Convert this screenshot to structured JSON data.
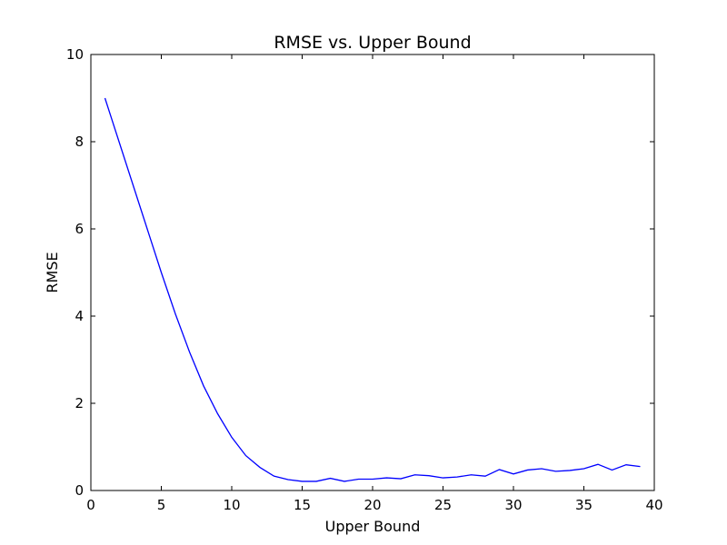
{
  "chart_data": {
    "type": "line",
    "title": "RMSE vs. Upper Bound",
    "xlabel": "Upper Bound",
    "ylabel": "RMSE",
    "xlim": [
      0,
      40
    ],
    "ylim": [
      0,
      10
    ],
    "xticks": [
      "0",
      "5",
      "10",
      "15",
      "20",
      "25",
      "30",
      "35",
      "40"
    ],
    "yticks": [
      "0",
      "2",
      "4",
      "6",
      "8",
      "10"
    ],
    "grid": false,
    "legend": "none",
    "series": [
      {
        "color": "#0000ff",
        "x": [
          1,
          2,
          3,
          4,
          5,
          6,
          7,
          8,
          9,
          10,
          11,
          12,
          13,
          14,
          15,
          16,
          17,
          18,
          19,
          20,
          21,
          22,
          23,
          24,
          25,
          26,
          27,
          28,
          29,
          30,
          31,
          32,
          33,
          34,
          35,
          36,
          37,
          38,
          39
        ],
        "y": [
          9.0,
          8.0,
          7.0,
          6.0,
          5.0,
          4.05,
          3.18,
          2.4,
          1.76,
          1.22,
          0.8,
          0.53,
          0.33,
          0.25,
          0.21,
          0.21,
          0.28,
          0.21,
          0.26,
          0.26,
          0.29,
          0.27,
          0.36,
          0.34,
          0.29,
          0.31,
          0.36,
          0.33,
          0.48,
          0.38,
          0.47,
          0.5,
          0.44,
          0.46,
          0.5,
          0.6,
          0.47,
          0.59,
          0.55
        ]
      }
    ]
  }
}
